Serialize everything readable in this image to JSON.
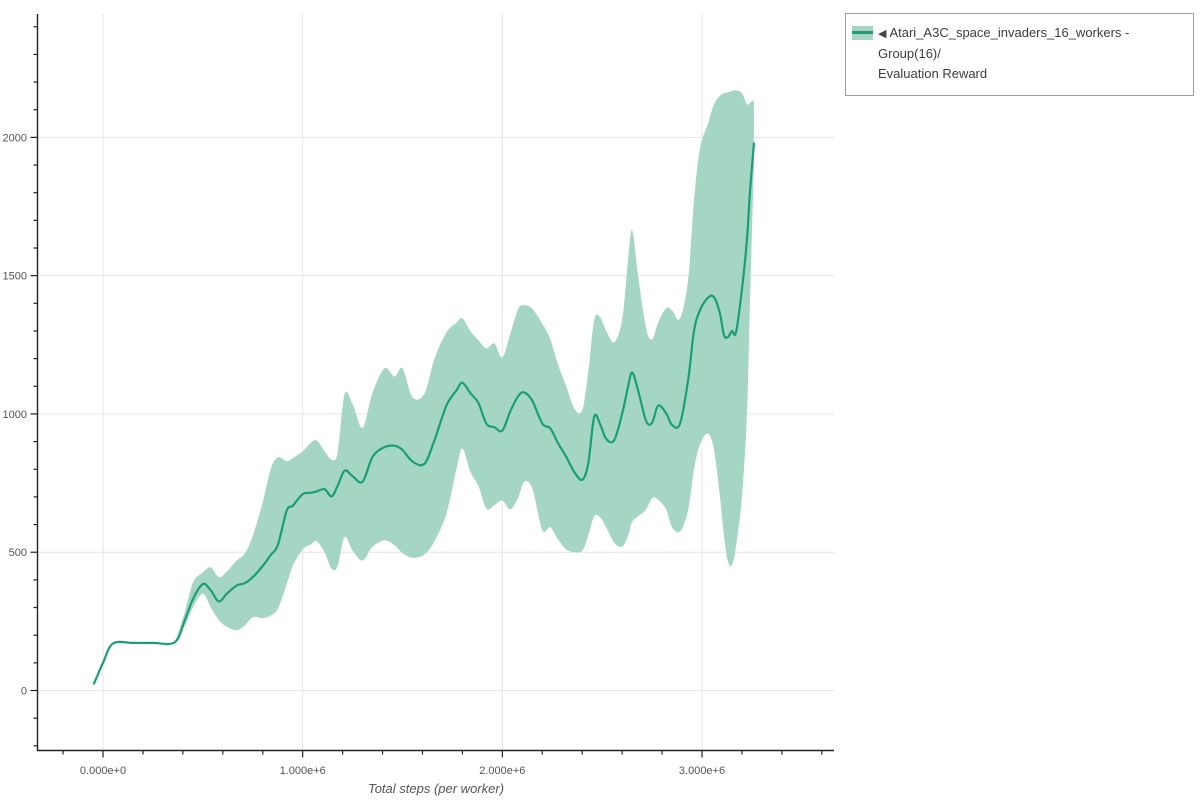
{
  "page": {
    "background": "#ffffff"
  },
  "legend": {
    "collapse_icon": "◀",
    "series_name": "Atari_A3C_space_invaders_16_workers - Group(16)/",
    "metric_name": "Evaluation Reward",
    "border_color": "#9e9e9e"
  },
  "chart_data": {
    "type": "line",
    "title": "",
    "xlabel": "Total steps (per worker)",
    "ylabel": "",
    "grid": "major",
    "legend_position": "outside-top-right",
    "xlim": [
      -330000,
      3660000
    ],
    "ylim": [
      -217,
      2447
    ],
    "x_major_ticks": [
      0,
      1000000,
      2000000,
      3000000
    ],
    "x_tick_labels": [
      "0.000e+0",
      "1.000e+6",
      "2.000e+6",
      "3.000e+6"
    ],
    "y_major_ticks": [
      0,
      500,
      1000,
      1500,
      2000
    ],
    "y_tick_labels": [
      "0",
      "500",
      "1000",
      "1500",
      "2000"
    ],
    "x_minor": {
      "start": -200000,
      "end": 3600000,
      "step": 200000
    },
    "y_minor": {
      "start": -200,
      "end": 2400,
      "step": 100
    },
    "colors": {
      "line": "#1b9e77",
      "band": "#a5d6c4",
      "grid": "#e6e6e6",
      "axis": "#222222",
      "tick_label": "#545454",
      "axis_title": "#555555"
    },
    "series": [
      {
        "name": "Atari_A3C_space_invaders_16_workers - Group(16)/Evaluation Reward",
        "band_meaning": "min-max range",
        "x": [
          -45000,
          0,
          50000,
          150000,
          250000,
          360000,
          410000,
          450000,
          500000,
          540000,
          580000,
          620000,
          670000,
          710000,
          750000,
          800000,
          840000,
          875000,
          920000,
          950000,
          1000000,
          1040000,
          1070000,
          1110000,
          1145000,
          1175000,
          1210000,
          1250000,
          1300000,
          1350000,
          1410000,
          1460000,
          1500000,
          1550000,
          1610000,
          1660000,
          1720000,
          1770000,
          1800000,
          1840000,
          1880000,
          1920000,
          1960000,
          2000000,
          2040000,
          2080000,
          2110000,
          2150000,
          2200000,
          2240000,
          2280000,
          2320000,
          2360000,
          2400000,
          2430000,
          2460000,
          2490000,
          2520000,
          2560000,
          2600000,
          2630000,
          2650000,
          2680000,
          2720000,
          2750000,
          2780000,
          2820000,
          2850000,
          2890000,
          2930000,
          2960000,
          2990000,
          3030000,
          3060000,
          3090000,
          3110000,
          3130000,
          3150000,
          3170000,
          3200000,
          3225000,
          3240000,
          3260000
        ],
        "mean": [
          25,
          100,
          170,
          172,
          172,
          175,
          255,
          330,
          385,
          362,
          322,
          350,
          380,
          388,
          410,
          450,
          490,
          525,
          650,
          668,
          710,
          715,
          720,
          728,
          702,
          740,
          795,
          775,
          755,
          845,
          880,
          885,
          870,
          828,
          820,
          905,
          1030,
          1085,
          1113,
          1075,
          1040,
          965,
          952,
          940,
          1010,
          1065,
          1078,
          1048,
          965,
          948,
          893,
          845,
          790,
          762,
          820,
          990,
          962,
          910,
          905,
          1000,
          1100,
          1150,
          1085,
          975,
          968,
          1030,
          1003,
          960,
          965,
          1120,
          1300,
          1375,
          1420,
          1422,
          1363,
          1285,
          1278,
          1300,
          1295,
          1450,
          1630,
          1800,
          1978
        ],
        "lower": [
          25,
          100,
          170,
          172,
          172,
          175,
          235,
          300,
          350,
          300,
          255,
          230,
          218,
          235,
          265,
          262,
          271,
          295,
          385,
          450,
          510,
          528,
          540,
          500,
          440,
          450,
          555,
          505,
          470,
          520,
          543,
          525,
          497,
          480,
          492,
          540,
          640,
          800,
          875,
          790,
          740,
          658,
          670,
          687,
          655,
          700,
          755,
          730,
          580,
          590,
          545,
          510,
          500,
          505,
          560,
          630,
          625,
          590,
          535,
          520,
          560,
          610,
          630,
          655,
          695,
          690,
          655,
          590,
          575,
          650,
          800,
          890,
          929,
          870,
          700,
          560,
          465,
          455,
          520,
          700,
          1000,
          1400,
          1900
        ],
        "upper": [
          25,
          100,
          170,
          172,
          172,
          175,
          285,
          390,
          427,
          445,
          410,
          430,
          470,
          495,
          560,
          680,
          800,
          843,
          830,
          840,
          865,
          895,
          904,
          865,
          835,
          860,
          1072,
          1035,
          950,
          1078,
          1165,
          1135,
          1165,
          1060,
          1074,
          1200,
          1295,
          1330,
          1345,
          1300,
          1266,
          1237,
          1255,
          1204,
          1290,
          1380,
          1393,
          1380,
          1327,
          1270,
          1176,
          1100,
          1020,
          1013,
          1150,
          1340,
          1349,
          1300,
          1260,
          1340,
          1560,
          1664,
          1500,
          1310,
          1270,
          1330,
          1382,
          1374,
          1345,
          1483,
          1772,
          1960,
          2050,
          2120,
          2150,
          2160,
          2163,
          2168,
          2170,
          2160,
          2120,
          2125,
          2135
        ]
      }
    ]
  }
}
